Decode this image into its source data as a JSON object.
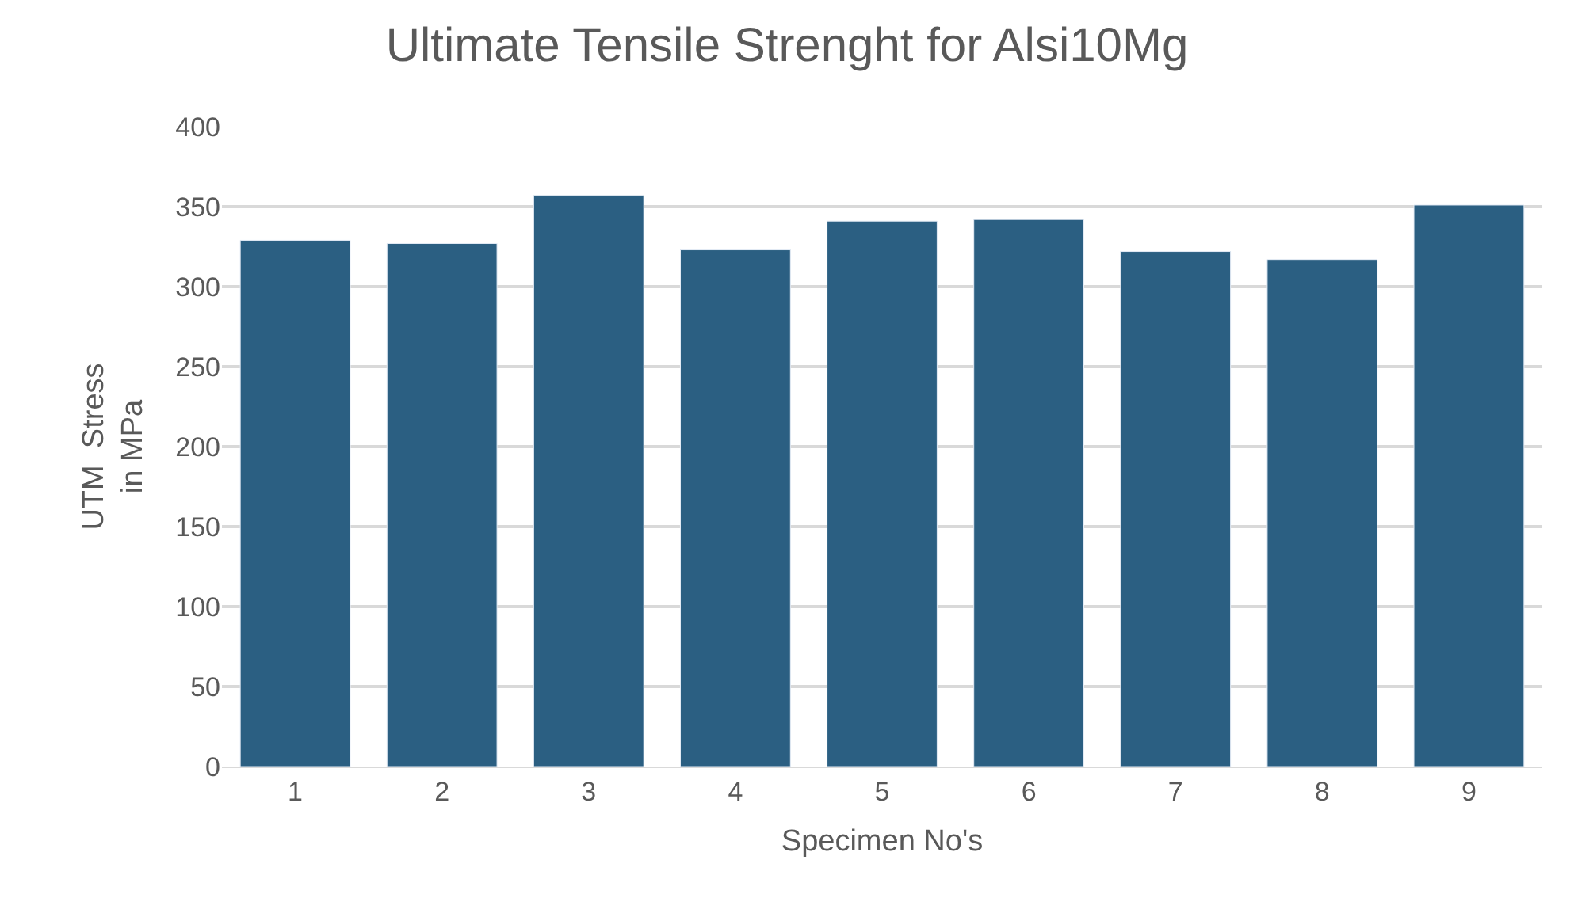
{
  "chart_data": {
    "type": "bar",
    "title": "Ultimate Tensile Strenght for Alsi10Mg",
    "xlabel": "Specimen No's",
    "ylabel": "UTM  Stress\nin MPa",
    "categories": [
      "1",
      "2",
      "3",
      "4",
      "5",
      "6",
      "7",
      "8",
      "9"
    ],
    "values": [
      329,
      327,
      357,
      323,
      341,
      342,
      322,
      317,
      351
    ],
    "color": "#2b5f82",
    "ylim": [
      0,
      400
    ],
    "yticks": [
      0,
      50,
      100,
      150,
      200,
      250,
      300,
      350,
      400
    ],
    "grid": "y"
  }
}
